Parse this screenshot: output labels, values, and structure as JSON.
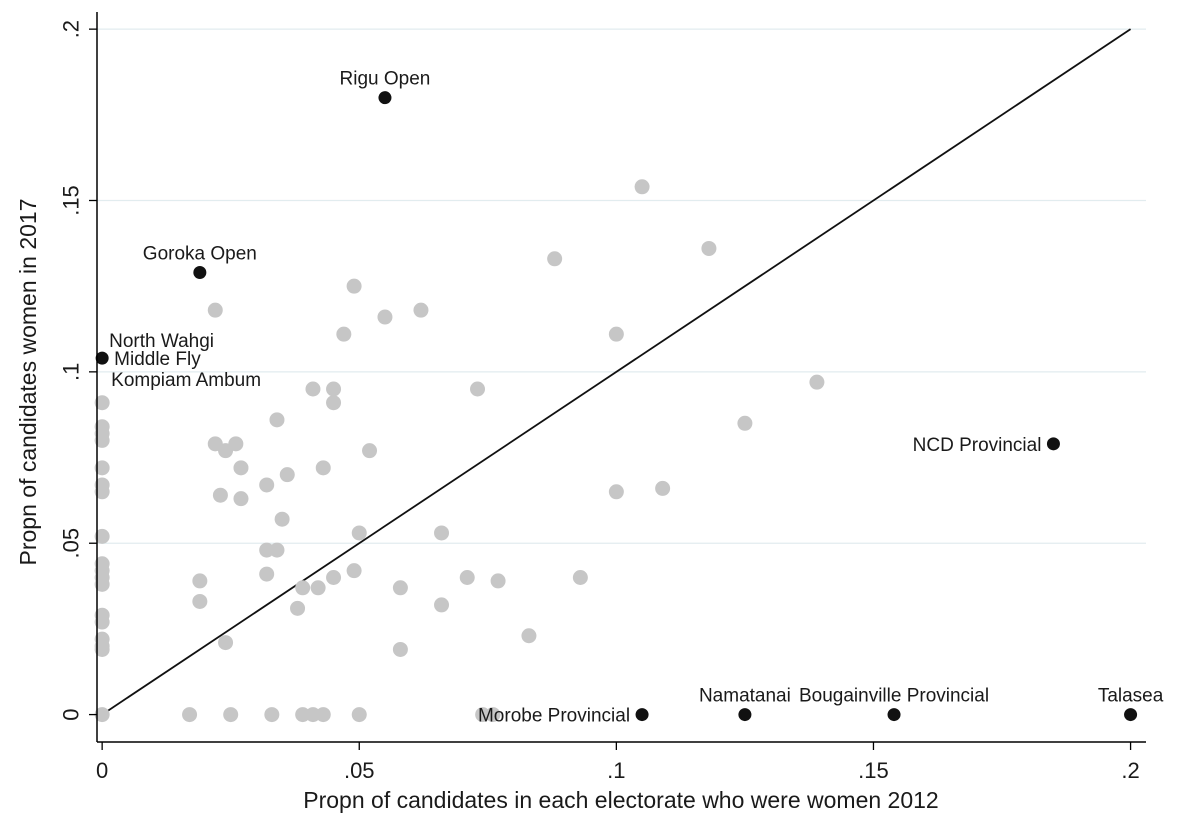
{
  "chart_data": {
    "type": "scatter",
    "xlabel": "Propn of candidates in each electorate who were women 2012",
    "ylabel": "Propn of candidates women  in 2017",
    "xlim": [
      -0.001,
      0.203
    ],
    "ylim": [
      -0.008,
      0.205
    ],
    "xticks": [
      {
        "value": 0,
        "label": "0"
      },
      {
        "value": 0.05,
        "label": ".05"
      },
      {
        "value": 0.1,
        "label": ".1"
      },
      {
        "value": 0.15,
        "label": ".15"
      },
      {
        "value": 0.2,
        "label": ".2"
      }
    ],
    "yticks": [
      {
        "value": 0,
        "label": "0"
      },
      {
        "value": 0.05,
        "label": ".05"
      },
      {
        "value": 0.1,
        "label": ".1"
      },
      {
        "value": 0.15,
        "label": ".15"
      },
      {
        "value": 0.2,
        "label": ".2"
      }
    ],
    "grid": "horizontal",
    "reference_line": {
      "x": [
        0,
        0.2
      ],
      "y": [
        0,
        0.2
      ]
    },
    "colors": {
      "other": "#c6c6c6",
      "labelled": "#111111",
      "line": "#111111",
      "grid": "#e2ecef"
    },
    "labelled_points": [
      {
        "x": 0.055,
        "y": 0.18,
        "label": "Rigu Open",
        "anchor": "above"
      },
      {
        "x": 0.019,
        "y": 0.129,
        "label": "Goroka Open",
        "anchor": "above"
      },
      {
        "x": 0.0,
        "y": 0.104,
        "label": "North Wahgi",
        "anchor": "right-up"
      },
      {
        "x": 0.0,
        "y": 0.104,
        "label": "Middle Fly",
        "anchor": "right"
      },
      {
        "x": 0.0,
        "y": 0.104,
        "label": "Kompiam Ambum",
        "anchor": "right-down"
      },
      {
        "x": 0.185,
        "y": 0.079,
        "label": "NCD Provincial",
        "anchor": "left"
      },
      {
        "x": 0.105,
        "y": 0.0,
        "label": "Morobe Provincial",
        "anchor": "left"
      },
      {
        "x": 0.125,
        "y": 0.0,
        "label": "Namatanai",
        "anchor": "above"
      },
      {
        "x": 0.154,
        "y": 0.0,
        "label": "Bougainville Provincial",
        "anchor": "above"
      },
      {
        "x": 0.2,
        "y": 0.0,
        "label": "Talasea",
        "anchor": "above"
      }
    ],
    "other_points": [
      [
        0.0,
        0.091
      ],
      [
        0.0,
        0.084
      ],
      [
        0.0,
        0.082
      ],
      [
        0.0,
        0.08
      ],
      [
        0.0,
        0.072
      ],
      [
        0.0,
        0.067
      ],
      [
        0.0,
        0.065
      ],
      [
        0.0,
        0.052
      ],
      [
        0.0,
        0.044
      ],
      [
        0.0,
        0.042
      ],
      [
        0.0,
        0.04
      ],
      [
        0.0,
        0.038
      ],
      [
        0.0,
        0.029
      ],
      [
        0.0,
        0.027
      ],
      [
        0.0,
        0.022
      ],
      [
        0.0,
        0.02
      ],
      [
        0.0,
        0.019
      ],
      [
        0.0,
        0.0
      ],
      [
        0.017,
        0.0
      ],
      [
        0.019,
        0.039
      ],
      [
        0.019,
        0.033
      ],
      [
        0.022,
        0.118
      ],
      [
        0.022,
        0.079
      ],
      [
        0.024,
        0.077
      ],
      [
        0.026,
        0.079
      ],
      [
        0.023,
        0.064
      ],
      [
        0.027,
        0.072
      ],
      [
        0.027,
        0.063
      ],
      [
        0.024,
        0.021
      ],
      [
        0.025,
        0.0
      ],
      [
        0.032,
        0.067
      ],
      [
        0.032,
        0.048
      ],
      [
        0.034,
        0.048
      ],
      [
        0.032,
        0.041
      ],
      [
        0.034,
        0.086
      ],
      [
        0.035,
        0.057
      ],
      [
        0.036,
        0.07
      ],
      [
        0.033,
        0.0
      ],
      [
        0.039,
        0.037
      ],
      [
        0.038,
        0.031
      ],
      [
        0.039,
        0.0
      ],
      [
        0.041,
        0.095
      ],
      [
        0.042,
        0.037
      ],
      [
        0.041,
        0.0
      ],
      [
        0.043,
        0.0
      ],
      [
        0.043,
        0.072
      ],
      [
        0.045,
        0.095
      ],
      [
        0.045,
        0.091
      ],
      [
        0.045,
        0.04
      ],
      [
        0.047,
        0.111
      ],
      [
        0.049,
        0.125
      ],
      [
        0.049,
        0.042
      ],
      [
        0.05,
        0.053
      ],
      [
        0.05,
        0.0
      ],
      [
        0.052,
        0.077
      ],
      [
        0.055,
        0.116
      ],
      [
        0.058,
        0.037
      ],
      [
        0.058,
        0.019
      ],
      [
        0.062,
        0.118
      ],
      [
        0.066,
        0.053
      ],
      [
        0.066,
        0.032
      ],
      [
        0.071,
        0.04
      ],
      [
        0.073,
        0.095
      ],
      [
        0.074,
        0.0
      ],
      [
        0.077,
        0.039
      ],
      [
        0.076,
        0.0
      ],
      [
        0.083,
        0.023
      ],
      [
        0.088,
        0.133
      ],
      [
        0.093,
        0.04
      ],
      [
        0.1,
        0.111
      ],
      [
        0.1,
        0.065
      ],
      [
        0.105,
        0.154
      ],
      [
        0.109,
        0.066
      ],
      [
        0.118,
        0.136
      ],
      [
        0.125,
        0.085
      ],
      [
        0.139,
        0.097
      ]
    ]
  }
}
